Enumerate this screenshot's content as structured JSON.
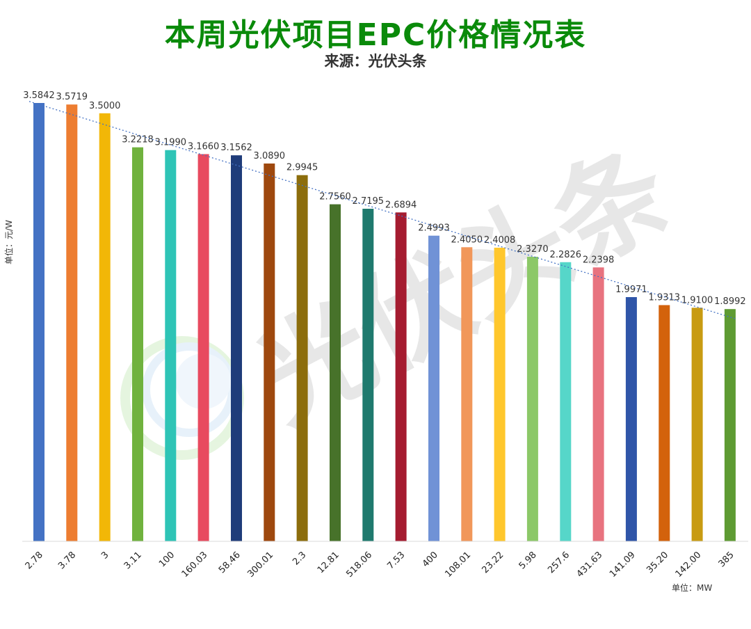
{
  "header": {
    "title": "本周光伏项目EPC价格情况表",
    "subtitle": "来源：光伏头条"
  },
  "watermark": "光伏头条",
  "chart_data": {
    "type": "bar",
    "title": "本周光伏项目EPC价格情况表",
    "subtitle": "来源：光伏头条",
    "ylabel": "单位：元/W",
    "xlabel": "单位：MW",
    "ylim": [
      0,
      3.6
    ],
    "grid": false,
    "trendline": "linear",
    "categories": [
      "2.78",
      "3.78",
      "3",
      "3.11",
      "100",
      "160.03",
      "58.46",
      "300.01",
      "2.3",
      "12.81",
      "518.06",
      "7.53",
      "400",
      "108.01",
      "23.22",
      "5.98",
      "257.6",
      "431.63",
      "141.09",
      "35.20",
      "142.00",
      "385"
    ],
    "values": [
      3.5842,
      3.5719,
      3.5,
      3.2218,
      3.199,
      3.166,
      3.1562,
      3.089,
      2.9945,
      2.756,
      2.7195,
      2.6894,
      2.4993,
      2.405,
      2.4008,
      2.327,
      2.2826,
      2.2398,
      1.9971,
      1.9313,
      1.91,
      1.8992
    ],
    "labels": [
      "3.5842",
      "3.5719",
      "3.5000",
      "3.2218",
      "3.1990",
      "3.1660",
      "3.1562",
      "3.0890",
      "2.9945",
      "2.7560",
      "2.7195",
      "2.6894",
      "2.4993",
      "2.4050",
      "2.4008",
      "2.3270",
      "2.2826",
      "2.2398",
      "1.9971",
      "1.9313",
      "1.9100",
      "1.8992"
    ],
    "colors": [
      "#4472C4",
      "#ED7D31",
      "#F2B707",
      "#70B23E",
      "#2EC4B6",
      "#E84A5F",
      "#1F3C7A",
      "#9E480E",
      "#8C6D0C",
      "#47722A",
      "#1F7A6E",
      "#A51C30",
      "#7092D6",
      "#F1975A",
      "#FFC72C",
      "#8CC868",
      "#56D6C9",
      "#E8737F",
      "#2F55A8",
      "#D3620C",
      "#C89B12",
      "#5E9B33"
    ]
  }
}
